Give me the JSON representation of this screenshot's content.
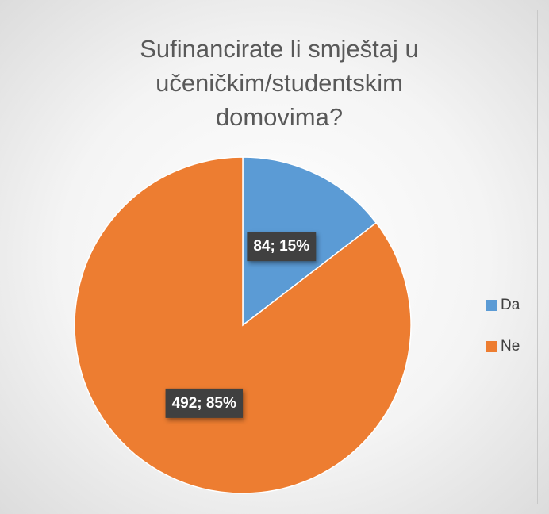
{
  "chart_data": {
    "type": "pie",
    "title": "Sufinancirate li smještaj u učeničkim/studentskim domovima?",
    "categories": [
      "Da",
      "Ne"
    ],
    "values": [
      84,
      492
    ],
    "value_labels": [
      "84; 15%",
      "492; 85%"
    ],
    "colors": [
      "#5b9bd5",
      "#ed7d31"
    ],
    "legend": "right"
  }
}
